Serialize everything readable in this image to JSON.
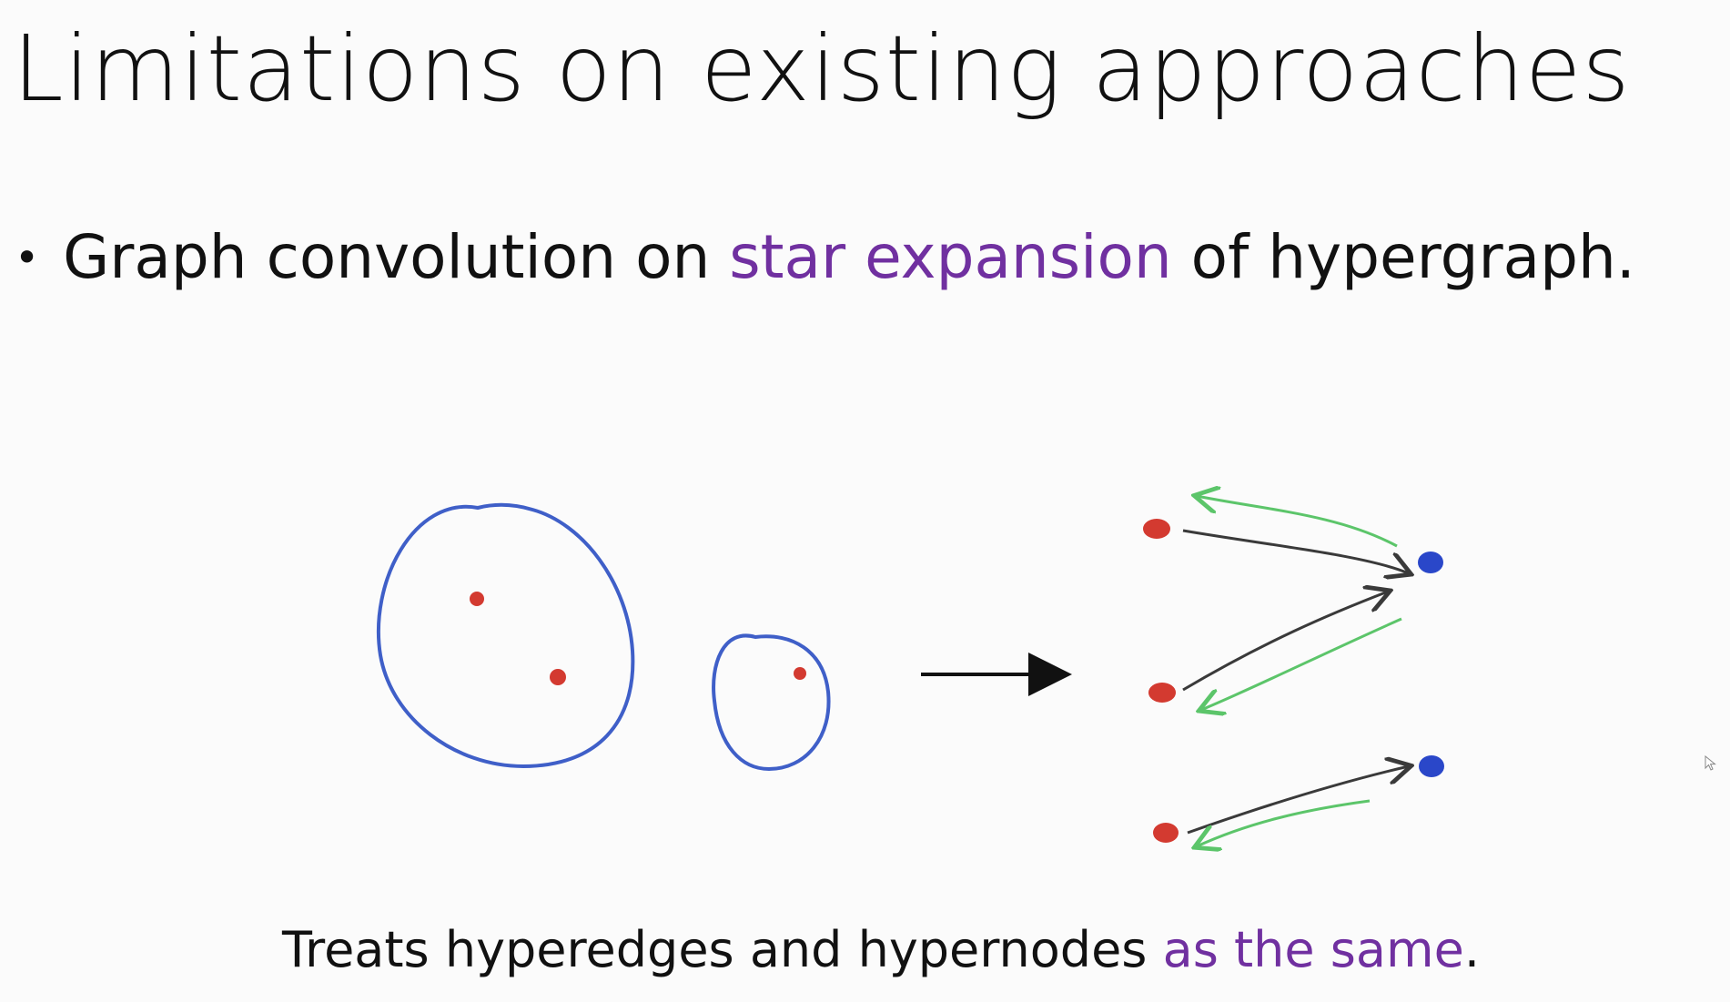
{
  "slide": {
    "title": "Limitations on existing approaches",
    "bullet": {
      "marker": "•",
      "text_before": "Graph convolution on ",
      "highlight": "star expansion",
      "text_after": " of hypergraph."
    },
    "caption": {
      "text_before": "Treats hyperedges and hypernodes ",
      "highlight": "as the same",
      "text_after": "."
    }
  },
  "colors": {
    "accent": "#7030a0",
    "hyperedge_outline": "#3f5fc8",
    "hypernode_dot": "#d33a30",
    "hyperedge_node_dot": "#2a47c9",
    "forward_arrow": "#3a3a3a",
    "backward_arrow": "#5cc56a"
  },
  "icons": {
    "transform_arrow": "right-arrow-icon",
    "cursor": "mouse-cursor-icon"
  }
}
